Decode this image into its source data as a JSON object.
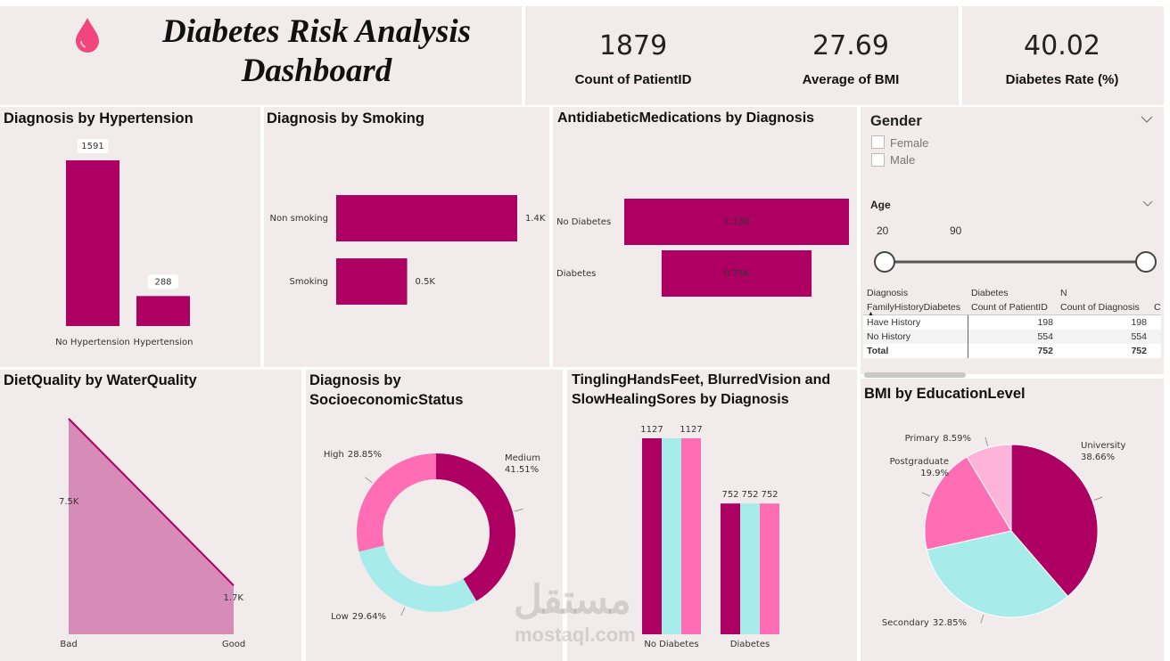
{
  "header": {
    "title": "Diabetes Risk Analysis Dashboard"
  },
  "kpis": [
    {
      "value": 1879,
      "label": "Count of PatientID"
    },
    {
      "value": 27.69,
      "label": "Average of BMI"
    },
    {
      "value": 40.02,
      "label": "Diabetes Rate (%)"
    }
  ],
  "chart_data": [
    {
      "type": "bar",
      "title": "Diagnosis by Hypertension",
      "categories": [
        "No Hypertension",
        "Hypertension"
      ],
      "values": [
        1591,
        288
      ],
      "color": "#ad0062"
    },
    {
      "type": "hbar",
      "title": "Diagnosis by Smoking",
      "categories": [
        "Non smoking",
        "Smoking"
      ],
      "values": [
        1350,
        529
      ],
      "value_labels": [
        "1.4K",
        "0.5K"
      ],
      "color": "#ad0062"
    },
    {
      "type": "funnel",
      "title": "AntidiabeticMedications by Diagnosis",
      "categories": [
        "No Diabetes",
        "Diabetes"
      ],
      "values": [
        1127,
        752
      ],
      "value_labels": [
        "1.13K",
        "0.75K"
      ],
      "color": "#ad0062"
    },
    {
      "type": "area",
      "title": "DietQuality by WaterQuality",
      "categories": [
        "Bad",
        "Good"
      ],
      "values": [
        7500,
        1700
      ],
      "value_labels": [
        "7.5K",
        "1.7K"
      ],
      "color": "#ad0062",
      "fill": "#d78cb8"
    },
    {
      "type": "donut",
      "title": "Diagnosis by SocioeconomicStatus",
      "categories": [
        "Medium",
        "Low",
        "High"
      ],
      "values": [
        41.51,
        29.64,
        28.85
      ],
      "value_labels": [
        "41.51%",
        "29.64%",
        "28.85%"
      ],
      "colors": [
        "#ad0062",
        "#a8ebeb",
        "#ff6eb4"
      ]
    },
    {
      "type": "grouped_bar",
      "title": "TinglingHandsFeet, BlurredVision and SlowHealingSores by Diagnosis",
      "categories": [
        "No Diabetes",
        "Diabetes"
      ],
      "series": [
        {
          "color": "#ad0062",
          "values": [
            1127,
            752
          ]
        },
        {
          "color": "#a8ebeb",
          "values": [
            1127,
            752
          ]
        },
        {
          "color": "#ff6eb4",
          "values": [
            1127,
            752
          ]
        }
      ]
    },
    {
      "type": "pie",
      "title": "BMI by EducationLevel",
      "categories": [
        "University",
        "Secondary",
        "Postgraduate",
        "Primary"
      ],
      "values": [
        38.66,
        32.85,
        19.9,
        8.59
      ],
      "value_labels": [
        "38.66%",
        "32.85%",
        "19.9%",
        "8.59%"
      ],
      "colors": [
        "#ad0062",
        "#a8ebeb",
        "#ff6eb4",
        "#ffb3d9"
      ]
    }
  ],
  "slicers": {
    "gender": {
      "title": "Gender",
      "options": [
        "Female",
        "Male"
      ]
    },
    "age": {
      "title": "Age",
      "min": 20,
      "max": 90
    }
  },
  "table": {
    "header": [
      [
        "Diagnosis",
        "Diabetes",
        "N"
      ],
      [
        "FamilyHistoryDiabetes",
        "Count of PatientID",
        "Count of Diagnosis",
        "C"
      ]
    ],
    "rows": [
      [
        "Have History",
        198,
        198
      ],
      [
        "No History",
        554,
        554
      ],
      [
        "Total",
        752,
        752
      ]
    ]
  },
  "watermark": [
    "مستقل",
    "mostaql.com"
  ]
}
